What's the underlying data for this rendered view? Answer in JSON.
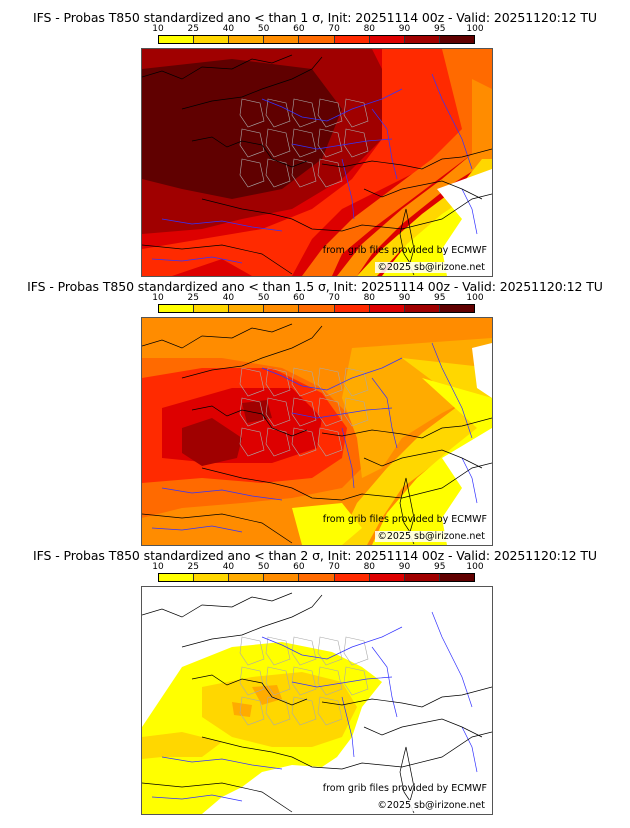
{
  "colorbar": {
    "ticks": [
      "10",
      "25",
      "40",
      "50",
      "60",
      "70",
      "80",
      "90",
      "95",
      "100"
    ],
    "colors": [
      "#ffff00",
      "#ffd700",
      "#ffab00",
      "#ff8c00",
      "#ff6a00",
      "#ff2a00",
      "#dd0000",
      "#a00000",
      "#600000"
    ]
  },
  "panels": [
    {
      "title": "IFS - Probas T850  standardized ano < than 1 σ, Init: 20251114 00z - Valid: 20251120:12 TU",
      "threshold": "1 σ",
      "source_credit": "from grib files provided by ECMWF",
      "copyright": "©2025 sb@irizone.net"
    },
    {
      "title": "IFS - Probas T850  standardized ano < than 1.5 σ, Init: 20251114 00z - Valid: 20251120:12 TU",
      "threshold": "1.5 σ",
      "source_credit": "from grib files provided by ECMWF",
      "copyright": "©2025 sb@irizone.net"
    },
    {
      "title": "IFS - Probas T850  standardized ano < than 2 σ, Init: 20251114 00z - Valid: 20251120:12 TU",
      "threshold": "2 σ",
      "source_credit": "from grib files provided by ECMWF",
      "copyright": "©2025 sb@irizone.net"
    }
  ],
  "map_layers": {
    "coastline_color": "#000000",
    "river_color": "#3333ff",
    "border_color": "#aaaaaa"
  }
}
